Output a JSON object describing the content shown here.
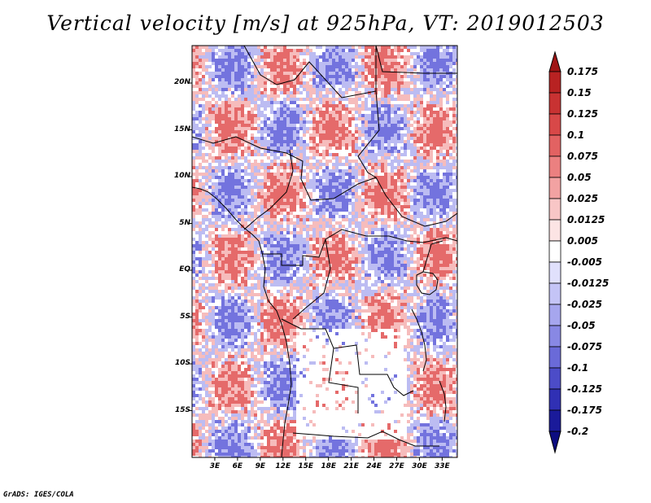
{
  "title": "Vertical velocity [m/s] at 925hPa, VT: 2019012503",
  "footer": "GrADS: IGES/COLA",
  "map": {
    "variable": "Vertical velocity",
    "units": "m/s",
    "level": "925hPa",
    "valid_time": "2019012503",
    "lon_range": [
      0,
      35
    ],
    "lat_range": [
      -20,
      24
    ],
    "lat_ticks": [
      {
        "lat": 20,
        "label": "20N"
      },
      {
        "lat": 15,
        "label": "15N"
      },
      {
        "lat": 10,
        "label": "10N"
      },
      {
        "lat": 5,
        "label": "5N"
      },
      {
        "lat": 0,
        "label": "EQ"
      },
      {
        "lat": -5,
        "label": "5S"
      },
      {
        "lat": -10,
        "label": "10S"
      },
      {
        "lat": -15,
        "label": "15S"
      }
    ],
    "lon_ticks": [
      {
        "lon": 3,
        "label": "3E"
      },
      {
        "lon": 6,
        "label": "6E"
      },
      {
        "lon": 9,
        "label": "9E"
      },
      {
        "lon": 12,
        "label": "12E"
      },
      {
        "lon": 15,
        "label": "15E"
      },
      {
        "lon": 18,
        "label": "18E"
      },
      {
        "lon": 21,
        "label": "21E"
      },
      {
        "lon": 24,
        "label": "24E"
      },
      {
        "lon": 27,
        "label": "27E"
      },
      {
        "lon": 30,
        "label": "30E"
      },
      {
        "lon": 33,
        "label": "33E"
      }
    ]
  },
  "colorbar": {
    "labels": [
      "0.175",
      "0.15",
      "0.125",
      "0.1",
      "0.075",
      "0.05",
      "0.025",
      "0.0125",
      "0.005",
      "-0.005",
      "-0.0125",
      "-0.025",
      "-0.05",
      "-0.075",
      "-0.1",
      "-0.125",
      "-0.175",
      "-0.2"
    ],
    "colors": [
      "#a01414",
      "#b82222",
      "#c83232",
      "#d84848",
      "#e26262",
      "#eb8080",
      "#f2a2a2",
      "#f8c6c6",
      "#fce4e4",
      "#ffffff",
      "#e0e0fc",
      "#c4c4f6",
      "#a6a6ee",
      "#8888e4",
      "#6a6ad8",
      "#4c4cc8",
      "#3030b4",
      "#1a1a9a",
      "#0c0c80"
    ]
  },
  "field_palette": {
    "strong_up": "#e05050",
    "weak_up": "#f4b0b0",
    "strong_down": "#5a5ad8",
    "weak_down": "#b0b0f0",
    "neutral": "#ffffff"
  }
}
